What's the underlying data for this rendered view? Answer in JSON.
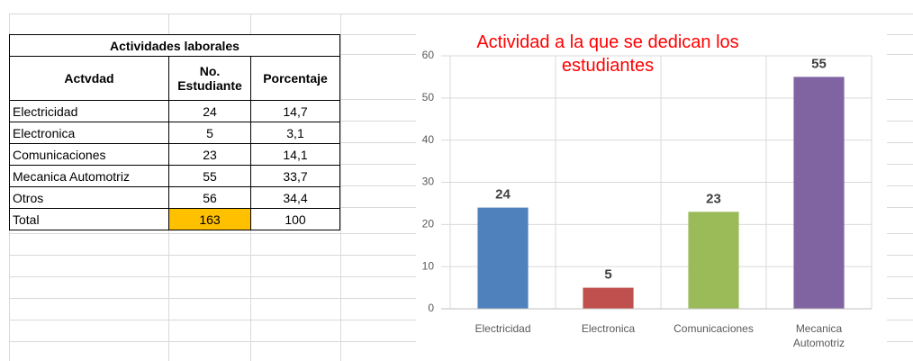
{
  "table": {
    "title": "Actividades laborales",
    "columns": [
      "Actvdad",
      "No. Estudiante",
      "Porcentaje"
    ],
    "rows": [
      [
        "Electricidad",
        "24",
        "14,7"
      ],
      [
        "Electronica",
        "5",
        "3,1"
      ],
      [
        "Comunicaciones",
        "23",
        "14,1"
      ],
      [
        "Mecanica Automotriz",
        "55",
        "33,7"
      ],
      [
        "Otros",
        "56",
        "34,4"
      ],
      [
        "Total",
        "163",
        "100"
      ]
    ]
  },
  "chart_data": {
    "type": "bar",
    "title": "Actividad a la que se dedican los estudiantes",
    "categories": [
      "Electricidad",
      "Electronica",
      "Comunicaciones",
      "Mecanica Automotriz"
    ],
    "values": [
      24,
      5,
      23,
      55
    ],
    "colors": [
      "#4f81bd",
      "#c0504d",
      "#9bbb59",
      "#8064a2"
    ],
    "ylim": [
      0,
      60
    ],
    "yticks": [
      0,
      10,
      20,
      30,
      40,
      50,
      60
    ],
    "grid": true
  }
}
